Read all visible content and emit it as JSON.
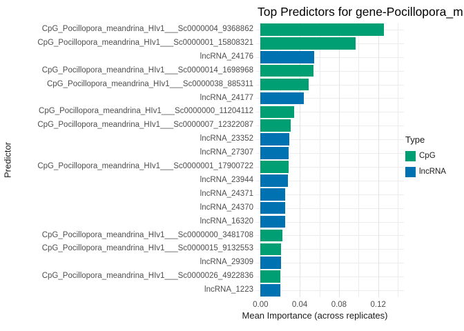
{
  "title": "Top Predictors for gene-Pocillopora_m",
  "axes": {
    "x_label": "Mean Importance (across replicates)",
    "y_label": "Predictor",
    "x_tick_labels": [
      "0.00",
      "0.04",
      "0.08",
      "0.12"
    ]
  },
  "legend": {
    "title": "Type",
    "entries": [
      {
        "label": "CpG",
        "color": "#009E73"
      },
      {
        "label": "lncRNA",
        "color": "#0072B2"
      }
    ]
  },
  "chart_data": {
    "type": "bar",
    "orientation": "horizontal",
    "title": "Top Predictors for gene-Pocillopora_m",
    "xlabel": "Mean Importance (across replicates)",
    "ylabel": "Predictor",
    "xlim": [
      0,
      0.145
    ],
    "x_major_ticks": [
      0,
      0.04,
      0.08,
      0.12
    ],
    "x_minor_ticks": [
      0.02,
      0.06,
      0.1,
      0.14
    ],
    "grid": true,
    "legend_position": "right",
    "series_color_map": {
      "CpG": "#009E73",
      "lncRNA": "#0072B2"
    },
    "bars": [
      {
        "label": "CpG_Pocillopora_meandrina_HIv1___Sc0000004_9368862",
        "type": "CpG",
        "value": 0.126
      },
      {
        "label": "CpG_Pocillopora_meandrina_HIv1___Sc0000001_15808321",
        "type": "CpG",
        "value": 0.097
      },
      {
        "label": "lncRNA_24176",
        "type": "lncRNA",
        "value": 0.055
      },
      {
        "label": "CpG_Pocillopora_meandrina_HIv1___Sc0000014_1698968",
        "type": "CpG",
        "value": 0.054
      },
      {
        "label": "CpG_Pocillopora_meandrina_HIv1___Sc0000038_885311",
        "type": "CpG",
        "value": 0.049
      },
      {
        "label": "lncRNA_24177",
        "type": "lncRNA",
        "value": 0.044
      },
      {
        "label": "CpG_Pocillopora_meandrina_HIv1___Sc0000000_11204112",
        "type": "CpG",
        "value": 0.034
      },
      {
        "label": "CpG_Pocillopora_meandrina_HIv1___Sc0000007_12322087",
        "type": "CpG",
        "value": 0.031
      },
      {
        "label": "lncRNA_23352",
        "type": "lncRNA",
        "value": 0.0295
      },
      {
        "label": "lncRNA_27307",
        "type": "lncRNA",
        "value": 0.029
      },
      {
        "label": "CpG_Pocillopora_meandrina_HIv1___Sc0000001_17900722",
        "type": "CpG",
        "value": 0.029
      },
      {
        "label": "lncRNA_23944",
        "type": "lncRNA",
        "value": 0.028
      },
      {
        "label": "lncRNA_24371",
        "type": "lncRNA",
        "value": 0.025
      },
      {
        "label": "lncRNA_24370",
        "type": "lncRNA",
        "value": 0.025
      },
      {
        "label": "lncRNA_16320",
        "type": "lncRNA",
        "value": 0.025
      },
      {
        "label": "CpG_Pocillopora_meandrina_HIv1___Sc0000000_3481708",
        "type": "CpG",
        "value": 0.0225
      },
      {
        "label": "CpG_Pocillopora_meandrina_HIv1___Sc0000015_9132553",
        "type": "CpG",
        "value": 0.021
      },
      {
        "label": "lncRNA_29309",
        "type": "lncRNA",
        "value": 0.021
      },
      {
        "label": "CpG_Pocillopora_meandrina_HIv1___Sc0000026_4922836",
        "type": "CpG",
        "value": 0.0205
      },
      {
        "label": "lncRNA_1223",
        "type": "lncRNA",
        "value": 0.0205
      }
    ]
  }
}
